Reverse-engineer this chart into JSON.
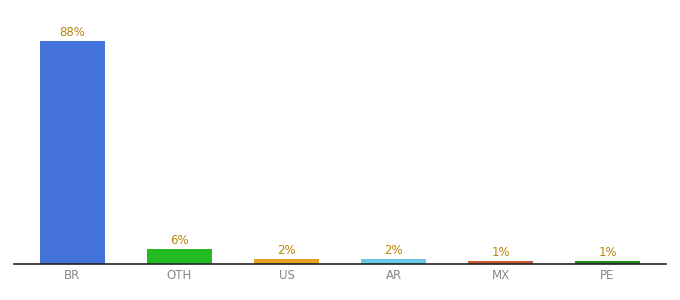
{
  "categories": [
    "BR",
    "OTH",
    "US",
    "AR",
    "MX",
    "PE"
  ],
  "values": [
    88,
    6,
    2,
    2,
    1,
    1
  ],
  "bar_colors": [
    "#4472db",
    "#22bb22",
    "#e8a020",
    "#6cc8e8",
    "#cc5533",
    "#228822"
  ],
  "label_color": "#b8860b",
  "tick_color": "#888888",
  "background_color": "#ffffff",
  "ylim": [
    0,
    96
  ],
  "bar_width": 0.6
}
